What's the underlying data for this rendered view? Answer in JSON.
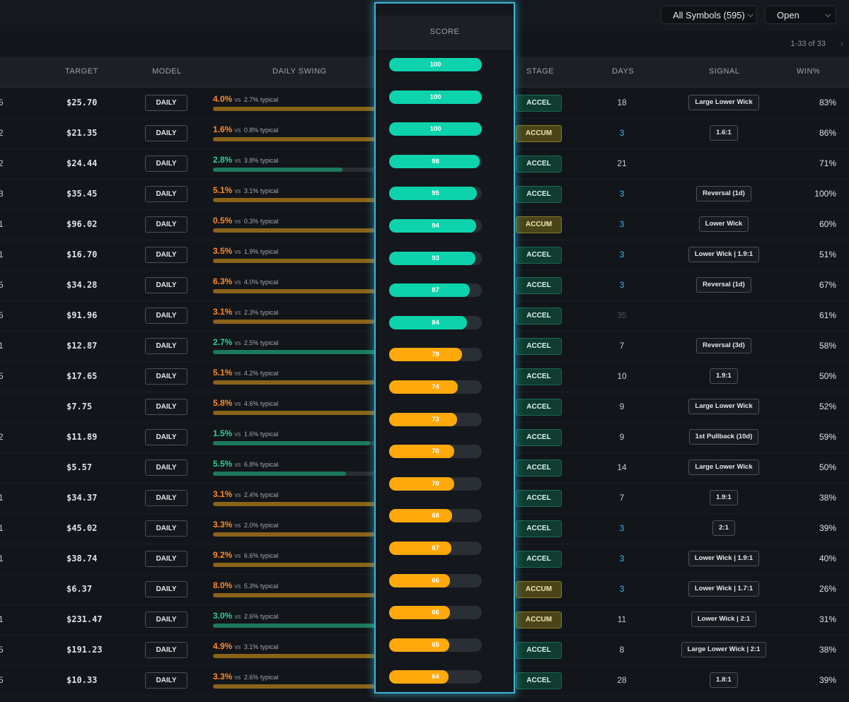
{
  "toolbar": {
    "symbols_select": "All Symbols (595)",
    "status_select": "Open",
    "pagination": "1-33 of 33",
    "prev_icon": "chevron-left-icon",
    "dropdown_icon": "chevron-down-icon"
  },
  "headers": {
    "target": "TARGET",
    "model": "MODEL",
    "daily_swing": "DAILY SWING",
    "score": "SCORE",
    "stage": "STAGE",
    "days": "DAYS",
    "signal": "SIGNAL",
    "win": "WIN%"
  },
  "labels": {
    "vs": "vs",
    "typical_suffix": "typical"
  },
  "colors": {
    "score_high": "#0dd3ad",
    "score_mid": "#ffa90c",
    "swing_orange": "#ff8a2a",
    "swing_green": "#2fd08f",
    "swing_bar_orange": "#8a6318",
    "swing_bar_green": "#1b7a5c",
    "days_blue": "#4fb3e6",
    "days_dim": "#4d545c",
    "panel_glow": "#3fb6d8"
  },
  "rows": [
    {
      "sym_edge": "5",
      "target": "$25.70",
      "model": "DAILY",
      "swing_pct": "4.0%",
      "swing_typical": "2.7% typical",
      "swing_tone": "orange",
      "swing_level": 1.0,
      "score": 100,
      "stage": "ACCEL",
      "days": "18",
      "days_tone": "normal",
      "signal": "Large Lower Wick",
      "win": "83%"
    },
    {
      "sym_edge": "2",
      "target": "$21.35",
      "model": "DAILY",
      "swing_pct": "1.6%",
      "swing_typical": "0.8% typical",
      "swing_tone": "orange",
      "swing_level": 1.0,
      "score": 100,
      "stage": "ACCUM",
      "days": "3",
      "days_tone": "blue",
      "signal": "1.6:1",
      "win": "86%"
    },
    {
      "sym_edge": "2",
      "target": "$24.44",
      "model": "DAILY",
      "swing_pct": "2.8%",
      "swing_typical": "3.8% typical",
      "swing_tone": "green",
      "swing_level": 0.8,
      "score": 100,
      "stage": "ACCEL",
      "days": "21",
      "days_tone": "normal",
      "signal": "",
      "win": "71%"
    },
    {
      "sym_edge": "3",
      "target": "$35.45",
      "model": "DAILY",
      "swing_pct": "5.1%",
      "swing_typical": "3.1% typical",
      "swing_tone": "orange",
      "swing_level": 1.0,
      "score": 98,
      "stage": "ACCEL",
      "days": "3",
      "days_tone": "blue",
      "signal": "Reversal (1d)",
      "win": "100%"
    },
    {
      "sym_edge": "1",
      "target": "$96.02",
      "model": "DAILY",
      "swing_pct": "0.5%",
      "swing_typical": "0.3% typical",
      "swing_tone": "orange",
      "swing_level": 1.0,
      "score": 95,
      "stage": "ACCUM",
      "days": "3",
      "days_tone": "blue",
      "signal": "Lower Wick",
      "win": "60%"
    },
    {
      "sym_edge": "1",
      "target": "$16.70",
      "model": "DAILY",
      "swing_pct": "3.5%",
      "swing_typical": "1.9% typical",
      "swing_tone": "orange",
      "swing_level": 1.0,
      "score": 94,
      "stage": "ACCEL",
      "days": "3",
      "days_tone": "blue",
      "signal": "Lower Wick | 1.9:1",
      "win": "51%"
    },
    {
      "sym_edge": "5",
      "target": "$34.28",
      "model": "DAILY",
      "swing_pct": "6.3%",
      "swing_typical": "4.0% typical",
      "swing_tone": "orange",
      "swing_level": 1.0,
      "score": 93,
      "stage": "ACCEL",
      "days": "3",
      "days_tone": "blue",
      "signal": "Reversal (1d)",
      "win": "67%"
    },
    {
      "sym_edge": "5",
      "target": "$91.96",
      "model": "DAILY",
      "swing_pct": "3.1%",
      "swing_typical": "2.3% typical",
      "swing_tone": "orange",
      "swing_level": 1.0,
      "score": 87,
      "stage": "ACCEL",
      "days": "35",
      "days_tone": "dim",
      "signal": "",
      "win": "61%"
    },
    {
      "sym_edge": "1",
      "target": "$12.87",
      "model": "DAILY",
      "swing_pct": "2.7%",
      "swing_typical": "2.5% typical",
      "swing_tone": "green",
      "swing_level": 1.0,
      "score": 84,
      "stage": "ACCEL",
      "days": "7",
      "days_tone": "normal",
      "signal": "Reversal (3d)",
      "win": "58%"
    },
    {
      "sym_edge": "5",
      "target": "$17.65",
      "model": "DAILY",
      "swing_pct": "5.1%",
      "swing_typical": "4.2% typical",
      "swing_tone": "orange",
      "swing_level": 1.0,
      "score": 79,
      "stage": "ACCEL",
      "days": "10",
      "days_tone": "normal",
      "signal": "1.9:1",
      "win": "50%"
    },
    {
      "sym_edge": "",
      "target": "$7.75",
      "model": "DAILY",
      "swing_pct": "5.8%",
      "swing_typical": "4.6% typical",
      "swing_tone": "orange",
      "swing_level": 1.0,
      "score": 74,
      "stage": "ACCEL",
      "days": "9",
      "days_tone": "normal",
      "signal": "Large Lower Wick",
      "win": "52%"
    },
    {
      "sym_edge": "2",
      "target": "$11.89",
      "model": "DAILY",
      "swing_pct": "1.5%",
      "swing_typical": "1.6% typical",
      "swing_tone": "green",
      "swing_level": 0.97,
      "score": 73,
      "stage": "ACCEL",
      "days": "9",
      "days_tone": "normal",
      "signal": "1st Pullback (10d)",
      "win": "59%"
    },
    {
      "sym_edge": "",
      "target": "$5.57",
      "model": "DAILY",
      "swing_pct": "5.5%",
      "swing_typical": "6.8% typical",
      "swing_tone": "green",
      "swing_level": 0.82,
      "score": 70,
      "stage": "ACCEL",
      "days": "14",
      "days_tone": "normal",
      "signal": "Large Lower Wick",
      "win": "50%"
    },
    {
      "sym_edge": "1",
      "target": "$34.37",
      "model": "DAILY",
      "swing_pct": "3.1%",
      "swing_typical": "2.4% typical",
      "swing_tone": "orange",
      "swing_level": 1.0,
      "score": 70,
      "stage": "ACCEL",
      "days": "7",
      "days_tone": "normal",
      "signal": "1.9:1",
      "win": "38%"
    },
    {
      "sym_edge": "1",
      "target": "$45.02",
      "model": "DAILY",
      "swing_pct": "3.3%",
      "swing_typical": "2.0% typical",
      "swing_tone": "orange",
      "swing_level": 1.0,
      "score": 68,
      "stage": "ACCEL",
      "days": "3",
      "days_tone": "blue",
      "signal": "2:1",
      "win": "39%"
    },
    {
      "sym_edge": "1",
      "target": "$38.74",
      "model": "DAILY",
      "swing_pct": "9.2%",
      "swing_typical": "6.6% typical",
      "swing_tone": "orange",
      "swing_level": 1.0,
      "score": 67,
      "stage": "ACCEL",
      "days": "3",
      "days_tone": "blue",
      "signal": "Lower Wick | 1.9:1",
      "win": "40%"
    },
    {
      "sym_edge": "",
      "target": "$6.37",
      "model": "DAILY",
      "swing_pct": "8.0%",
      "swing_typical": "5.3% typical",
      "swing_tone": "orange",
      "swing_level": 1.0,
      "score": 66,
      "stage": "ACCUM",
      "days": "3",
      "days_tone": "blue",
      "signal": "Lower Wick | 1.7:1",
      "win": "26%"
    },
    {
      "sym_edge": "1",
      "target": "$231.47",
      "model": "DAILY",
      "swing_pct": "3.0%",
      "swing_typical": "2.6% typical",
      "swing_tone": "green",
      "swing_level": 1.0,
      "score": 66,
      "stage": "ACCUM",
      "days": "11",
      "days_tone": "normal",
      "signal": "Lower Wick | 2:1",
      "win": "31%"
    },
    {
      "sym_edge": "5",
      "target": "$191.23",
      "model": "DAILY",
      "swing_pct": "4.9%",
      "swing_typical": "3.1% typical",
      "swing_tone": "orange",
      "swing_level": 1.0,
      "score": 65,
      "stage": "ACCEL",
      "days": "8",
      "days_tone": "normal",
      "signal": "Large Lower Wick | 2:1",
      "win": "38%"
    },
    {
      "sym_edge": "5",
      "target": "$10.33",
      "model": "DAILY",
      "swing_pct": "3.3%",
      "swing_typical": "2.6% typical",
      "swing_tone": "orange",
      "swing_level": 1.0,
      "score": 64,
      "stage": "ACCEL",
      "days": "28",
      "days_tone": "normal",
      "signal": "1.8:1",
      "win": "39%"
    }
  ]
}
